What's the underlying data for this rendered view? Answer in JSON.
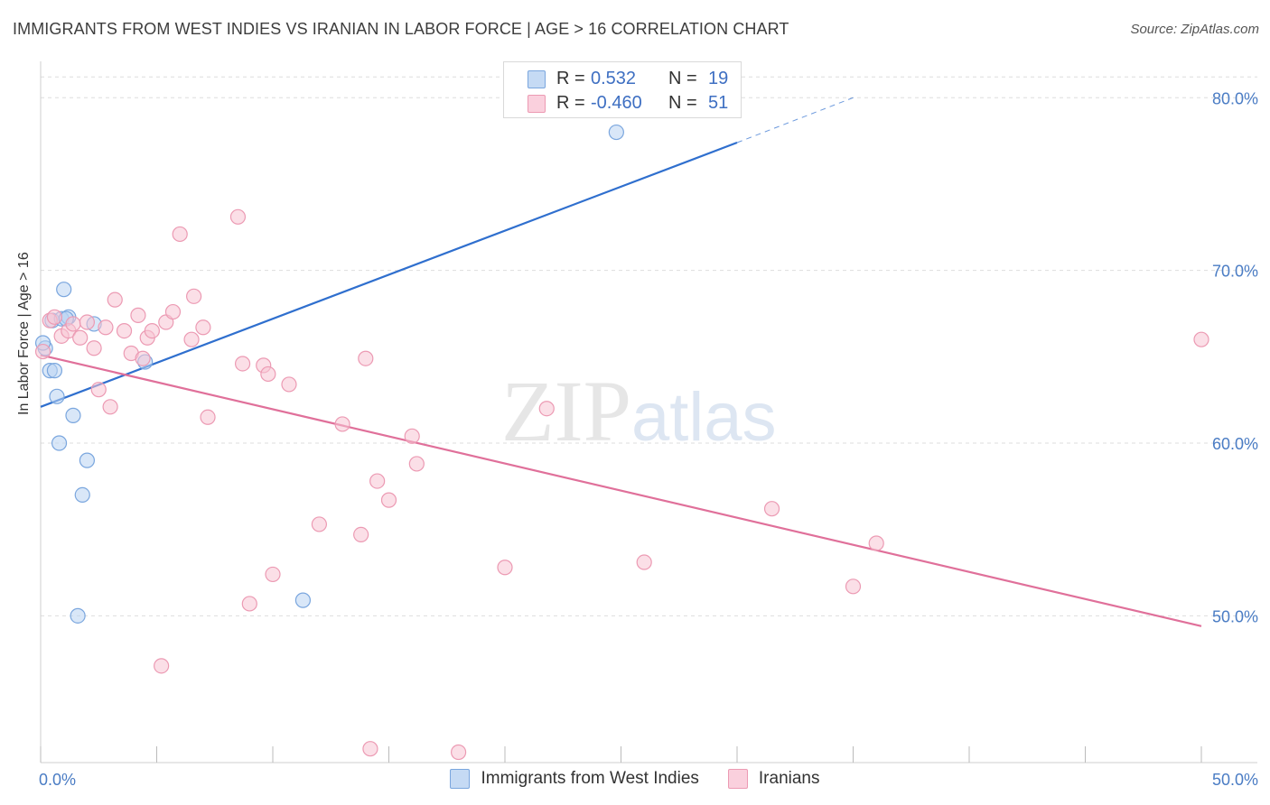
{
  "title": "IMMIGRANTS FROM WEST INDIES VS IRANIAN IN LABOR FORCE | AGE > 16 CORRELATION CHART",
  "source": "Source: ZipAtlas.com",
  "watermark": {
    "zip": "ZIP",
    "atlas": "atlas"
  },
  "legend_top": {
    "rows": [
      {
        "r_label": "R =",
        "r_value": "0.532",
        "n_label": "N =",
        "n_value": "19"
      },
      {
        "r_label": "R =",
        "r_value": "-0.460",
        "n_label": "N =",
        "n_value": "51"
      }
    ]
  },
  "colors": {
    "blue_fill": "#b9d3f2",
    "blue_stroke": "#7aa6de",
    "blue_line": "#2f6fce",
    "pink_fill": "#f7c4d4",
    "pink_stroke": "#ec9ab3",
    "pink_line": "#e0709a",
    "grid": "#dddddd",
    "tick_label": "#4a7cc4"
  },
  "chart_data": {
    "type": "scatter",
    "title": "IMMIGRANTS FROM WEST INDIES VS IRANIAN IN LABOR FORCE | AGE > 16 CORRELATION CHART",
    "xlabel": "",
    "ylabel": "In Labor Force | Age > 16",
    "xlim": [
      0,
      50
    ],
    "ylim": [
      41.5,
      82
    ],
    "x_tick_labels": [
      "0.0%",
      "50.0%"
    ],
    "y_ticks": [
      50,
      60,
      70,
      80
    ],
    "y_tick_labels": [
      "50.0%",
      "60.0%",
      "70.0%",
      "80.0%"
    ],
    "series": [
      {
        "name": "Immigrants from West Indies",
        "color": "blue",
        "r": 0.532,
        "n": 19,
        "points": [
          [
            0.2,
            65.5
          ],
          [
            0.4,
            64.2
          ],
          [
            0.5,
            67.1
          ],
          [
            0.7,
            62.7
          ],
          [
            0.8,
            60.0
          ],
          [
            0.9,
            67.2
          ],
          [
            1.0,
            68.9
          ],
          [
            1.2,
            67.3
          ],
          [
            1.4,
            61.6
          ],
          [
            1.6,
            50.0
          ],
          [
            1.8,
            57.0
          ],
          [
            2.0,
            59.0
          ],
          [
            2.3,
            66.9
          ],
          [
            4.5,
            64.7
          ],
          [
            11.3,
            50.9
          ],
          [
            24.8,
            78.0
          ],
          [
            0.1,
            65.8
          ],
          [
            0.6,
            64.2
          ],
          [
            1.1,
            67.2
          ]
        ],
        "trend": {
          "x0": 0,
          "y0": 62.1,
          "x1": 30,
          "y1": 77.4,
          "dash_x1": 35,
          "dash_y1": 80.0
        }
      },
      {
        "name": "Iranians",
        "color": "pink",
        "r": -0.46,
        "n": 51,
        "points": [
          [
            0.1,
            65.3
          ],
          [
            0.4,
            67.1
          ],
          [
            0.6,
            67.3
          ],
          [
            0.9,
            66.2
          ],
          [
            1.2,
            66.5
          ],
          [
            1.4,
            66.9
          ],
          [
            1.7,
            66.1
          ],
          [
            2.0,
            67.0
          ],
          [
            2.3,
            65.5
          ],
          [
            2.5,
            63.1
          ],
          [
            2.8,
            66.7
          ],
          [
            3.0,
            62.1
          ],
          [
            3.2,
            68.3
          ],
          [
            3.6,
            66.5
          ],
          [
            3.9,
            65.2
          ],
          [
            4.2,
            67.4
          ],
          [
            4.4,
            64.9
          ],
          [
            4.6,
            66.1
          ],
          [
            4.8,
            66.5
          ],
          [
            5.2,
            47.1
          ],
          [
            5.4,
            67.0
          ],
          [
            5.7,
            67.6
          ],
          [
            6.0,
            72.1
          ],
          [
            6.5,
            66.0
          ],
          [
            6.6,
            68.5
          ],
          [
            7.0,
            66.7
          ],
          [
            7.2,
            61.5
          ],
          [
            8.5,
            73.1
          ],
          [
            8.7,
            64.6
          ],
          [
            9.0,
            50.7
          ],
          [
            10.0,
            52.4
          ],
          [
            9.6,
            64.5
          ],
          [
            9.8,
            64.0
          ],
          [
            10.7,
            63.4
          ],
          [
            12.0,
            55.3
          ],
          [
            13.0,
            61.1
          ],
          [
            13.8,
            54.7
          ],
          [
            14.0,
            64.9
          ],
          [
            14.2,
            42.3
          ],
          [
            14.5,
            57.8
          ],
          [
            15.0,
            56.7
          ],
          [
            16.0,
            60.4
          ],
          [
            16.2,
            58.8
          ],
          [
            18.0,
            42.1
          ],
          [
            20.0,
            52.8
          ],
          [
            21.8,
            62.0
          ],
          [
            26.0,
            53.1
          ],
          [
            31.5,
            56.2
          ],
          [
            35.0,
            51.7
          ],
          [
            36.0,
            54.2
          ],
          [
            50.0,
            66.0
          ]
        ],
        "trend": {
          "x0": 0,
          "y0": 65.1,
          "x1": 50,
          "y1": 49.4
        }
      }
    ]
  }
}
